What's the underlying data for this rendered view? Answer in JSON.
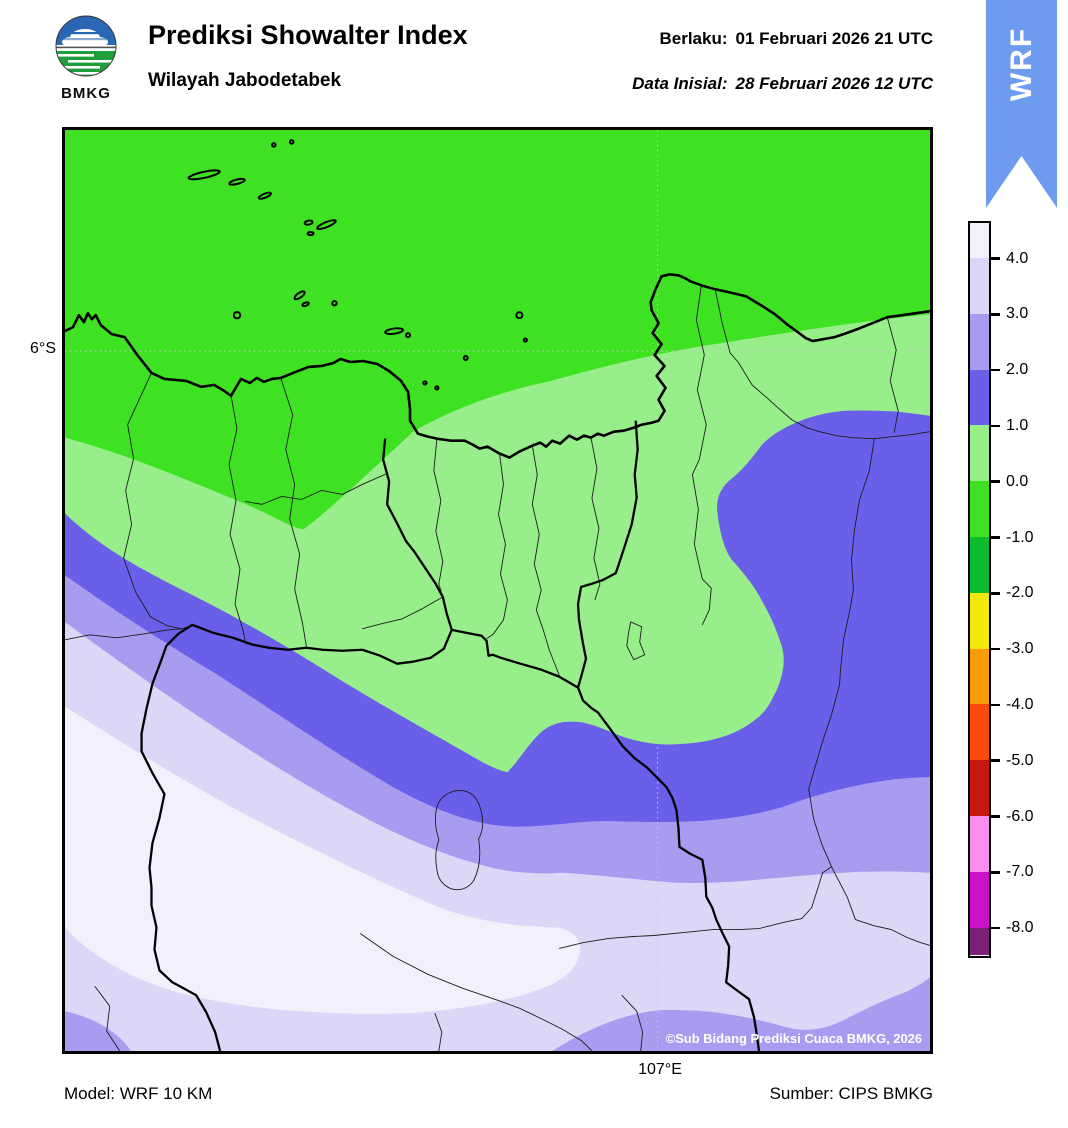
{
  "header": {
    "logo_text": "BMKG",
    "title": "Prediksi Showalter Index",
    "subtitle": "Wilayah Jabodetabek",
    "valid_label": "Berlaku:",
    "valid_value": "01 Februari 2026 21 UTC",
    "init_label": "Data Inisial:",
    "init_value": "28 Februari 2026 12 UTC",
    "ribbon_text": "WRF"
  },
  "map": {
    "lat_label": "6°S",
    "lon_label": "107°E",
    "copyright": "©Sub Bidang Prediksi Cuaca BMKG, 2026"
  },
  "colorbar": {
    "tick_labels": [
      "4.0",
      "3.0",
      "2.0",
      "1.0",
      "0.0",
      "-1.0",
      "-2.0",
      "-3.0",
      "-4.0",
      "-5.0",
      "-6.0",
      "-7.0",
      "-8.0"
    ],
    "segment_colors": [
      "#F1F0FB",
      "#DAD8F6",
      "#A89CF0",
      "#6A5FE9",
      "#98EE8B",
      "#3FE222",
      "#0CBE2E",
      "#F3E80B",
      "#FD9C0A",
      "#F94A0C",
      "#C5170F",
      "#F98EF0",
      "#CB11C7",
      "#7B2178"
    ]
  },
  "footer": {
    "model": "Model: WRF 10 KM",
    "source": "Sumber: CIPS BMKG"
  },
  "palette": {
    "ribbon_blue": "#6D9BEE",
    "logo_blue": "#2B66B4",
    "logo_green": "#1F9E3C",
    "sea_green": "#3FE222",
    "light_green": "#98EE8B",
    "blue_1_2": "#6A5FE9",
    "purple_2_3": "#A89CF0",
    "lavender_3_4": "#DAD8F6",
    "pale_above_4": "#F1F0FB"
  },
  "chart_data": {
    "type": "heatmap",
    "title": "Prediksi Showalter Index",
    "region": "Wilayah Jabodetabek",
    "legend_title_values": [
      4.0,
      3.0,
      2.0,
      1.0,
      0.0,
      -1.0,
      -2.0,
      -3.0,
      -4.0,
      -5.0,
      -6.0,
      -7.0,
      -8.0
    ],
    "legend_position": "right",
    "map_gridlines": {
      "latitude": "6S",
      "longitude": "107E",
      "style": "dotted"
    },
    "bands_visible_on_map_north_to_south": [
      {
        "range": "-1 to 0",
        "color": "#3FE222",
        "area": "Java Sea / north"
      },
      {
        "range": "0 to 1",
        "color": "#98EE8B",
        "area": "coast, Jakarta, tongue to Bogor"
      },
      {
        "range": "1 to 2",
        "color": "#6A5FE9",
        "area": "diagonal belt and large eastern lobe"
      },
      {
        "range": "2 to 3",
        "color": "#A89CF0",
        "area": "belt below blue; bottom corners"
      },
      {
        "range": "3 to 4",
        "color": "#DAD8F6",
        "area": "southern belt"
      },
      {
        "range": "above 4",
        "color": "#F1F0FB",
        "area": "south-west interior blob"
      }
    ]
  }
}
